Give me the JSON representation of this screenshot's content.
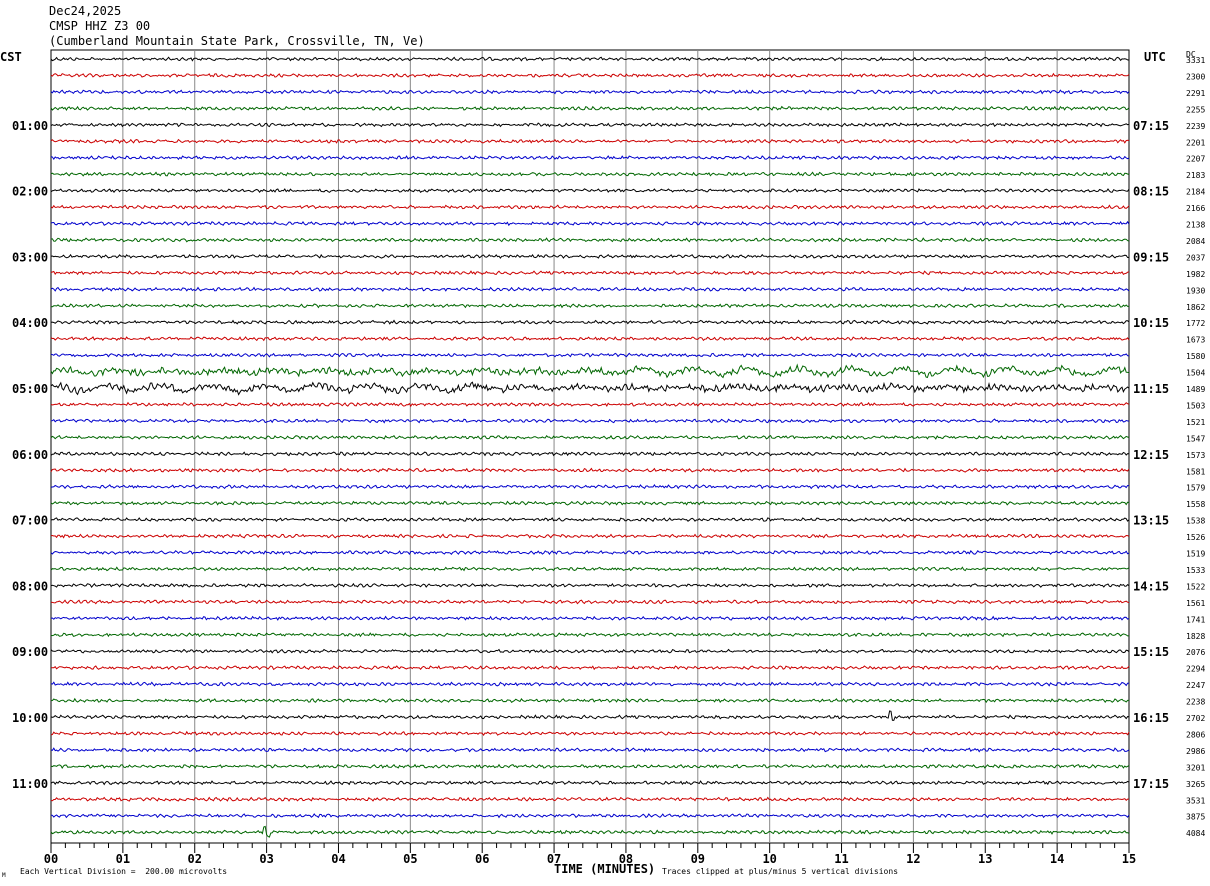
{
  "header": {
    "date": "Dec24,2025",
    "station": "CMSP HHZ Z3 00",
    "location": "(Cumberland Mountain State Park, Crossville, TN, Ve)"
  },
  "left_tz": "CST",
  "right_tz": "UTC",
  "dc_label": "DC",
  "footer": {
    "scale_note": "Each Vertical Division =  200.00 microvolts",
    "clip_note": "Traces clipped at plus/minus 5 vertical divisions",
    "corner_mark": "M"
  },
  "colors": {
    "trace_cycle": [
      "#000000",
      "#cc0000",
      "#0000cc",
      "#006600"
    ],
    "grid": "#888888"
  },
  "chart_data": {
    "type": "line",
    "subtype": "helicorder",
    "xlabel": "TIME (MINUTES)",
    "xlim": [
      0,
      15
    ],
    "x_ticks": [
      "00",
      "01",
      "02",
      "03",
      "04",
      "05",
      "06",
      "07",
      "08",
      "09",
      "10",
      "11",
      "12",
      "13",
      "14",
      "15"
    ],
    "line_minutes": 15,
    "rows": 48,
    "left_hour_labels": [
      "01:00",
      "02:00",
      "03:00",
      "04:00",
      "05:00",
      "06:00",
      "07:00",
      "08:00",
      "09:00",
      "10:00",
      "11:00"
    ],
    "right_hour_labels": [
      "07:15",
      "08:15",
      "09:15",
      "10:15",
      "11:15",
      "12:15",
      "13:15",
      "14:15",
      "15:15",
      "16:15",
      "17:15"
    ],
    "hour_label_first_row": 4,
    "hour_label_row_step": 4,
    "dc_offsets": [
      "3331",
      "2300",
      "2291",
      "2255",
      "2239",
      "2201",
      "2207",
      "2183",
      "2184",
      "2166",
      "2138",
      "2084",
      "2037",
      "1982",
      "1930",
      "1862",
      "1772",
      "1673",
      "1580",
      "1504",
      "1489",
      "1503",
      "1521",
      "1547",
      "1573",
      "1581",
      "1579",
      "1558",
      "1538",
      "1526",
      "1519",
      "1533",
      "1522",
      "1561",
      "1741",
      "1828",
      "2076",
      "2294",
      "2247",
      "2238",
      "2702",
      "2806",
      "2986",
      "3201",
      "3265",
      "3531",
      "3875",
      "4084"
    ],
    "noisy_rows": [
      19,
      20
    ],
    "events": [
      {
        "row": 40,
        "minute": 11.7,
        "note": "small spike"
      },
      {
        "row": 47,
        "minute": 3.0,
        "note": "small spike"
      }
    ]
  }
}
